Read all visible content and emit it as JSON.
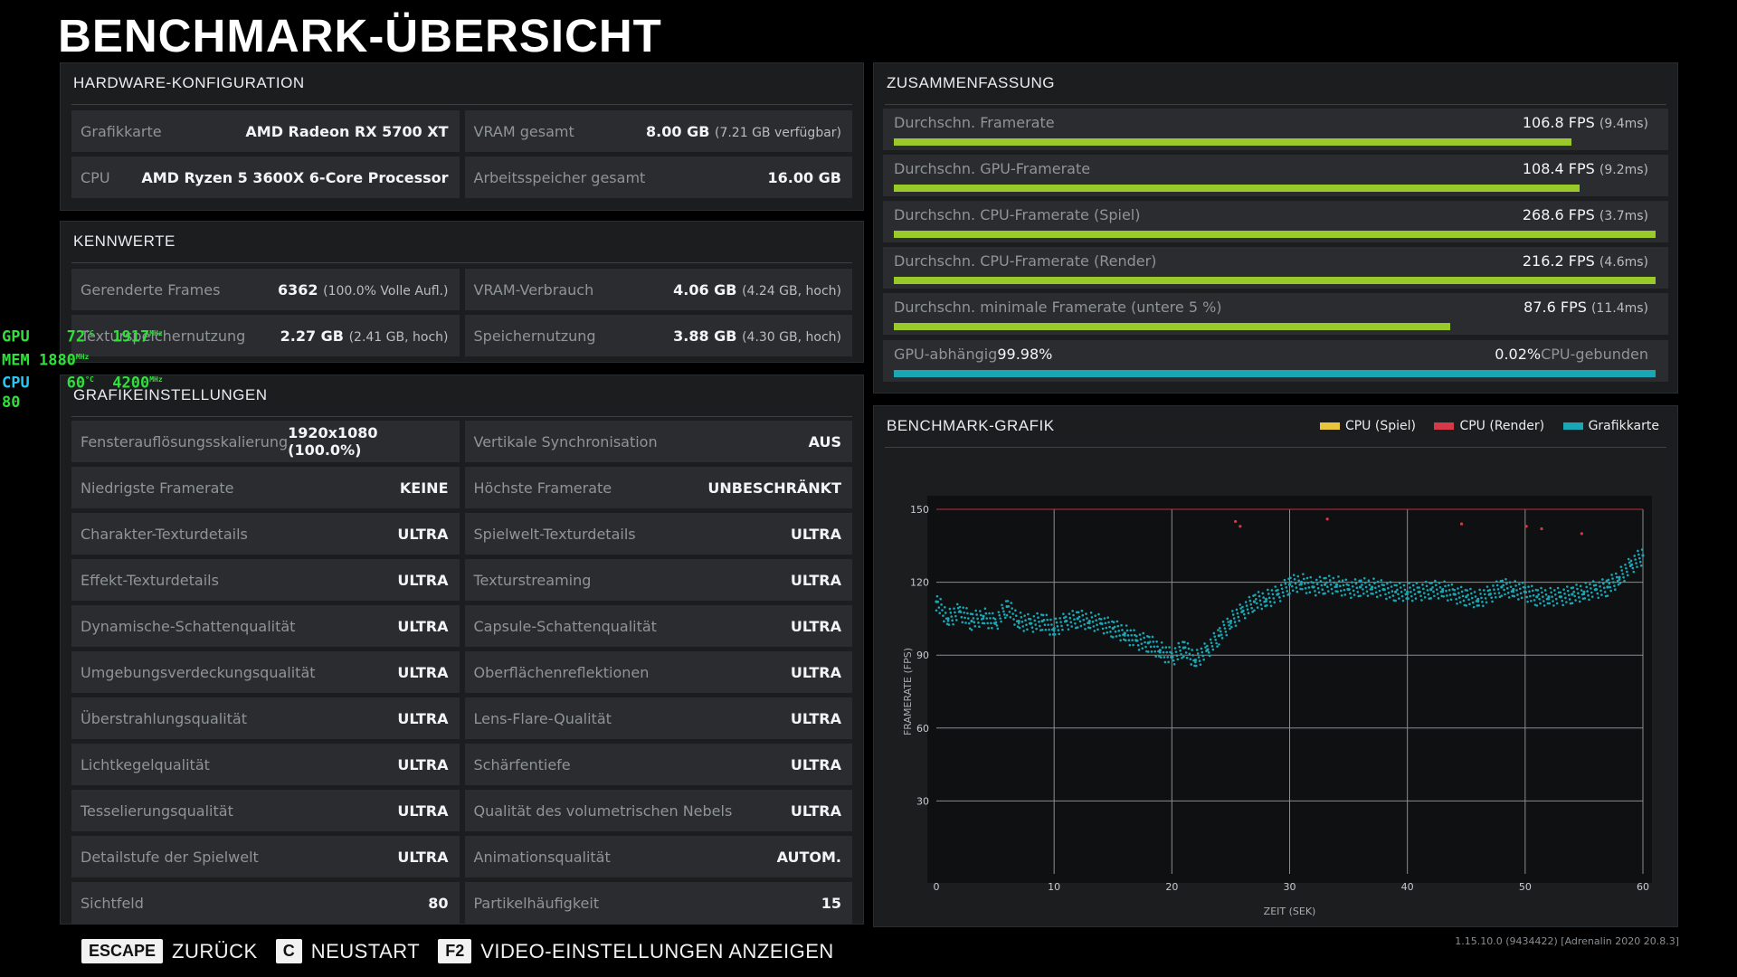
{
  "title": "BENCHMARK-ÜBERSICHT",
  "hardware": {
    "heading": "HARDWARE-KONFIGURATION",
    "rows": [
      {
        "k": "Grafikkarte",
        "v": "AMD Radeon RX 5700 XT",
        "s": ""
      },
      {
        "k": "VRAM gesamt",
        "v": "8.00 GB",
        "s": "(7.21 GB verfügbar)"
      },
      {
        "k": "CPU",
        "v": "AMD Ryzen 5 3600X 6-Core Processor",
        "s": ""
      },
      {
        "k": "Arbeitsspeicher gesamt",
        "v": "16.00 GB",
        "s": ""
      }
    ]
  },
  "kennwerte": {
    "heading": "KENNWERTE",
    "rows": [
      {
        "k": "Gerenderte Frames",
        "v": "6362",
        "s": "(100.0% Volle Aufl.)"
      },
      {
        "k": "VRAM-Verbrauch",
        "v": "4.06 GB",
        "s": "(4.24 GB, hoch)"
      },
      {
        "k": "Texturspeichernutzung",
        "v": "2.27 GB",
        "s": "(2.41 GB, hoch)"
      },
      {
        "k": "Speichernutzung",
        "v": "3.88 GB",
        "s": "(4.30 GB, hoch)"
      }
    ]
  },
  "grafik": {
    "heading": "GRAFIKEINSTELLUNGEN",
    "rows": [
      {
        "k": "Fensterauflösungsskalierung",
        "v": "1920x1080 (100.0%)"
      },
      {
        "k": "Vertikale Synchronisation",
        "v": "AUS"
      },
      {
        "k": "Niedrigste Framerate",
        "v": "KEINE"
      },
      {
        "k": "Höchste Framerate",
        "v": "UNBESCHRÄNKT"
      },
      {
        "k": "Charakter-Texturdetails",
        "v": "ULTRA"
      },
      {
        "k": "Spielwelt-Texturdetails",
        "v": "ULTRA"
      },
      {
        "k": "Effekt-Texturdetails",
        "v": "ULTRA"
      },
      {
        "k": "Texturstreaming",
        "v": "ULTRA"
      },
      {
        "k": "Dynamische-Schattenqualität",
        "v": "ULTRA"
      },
      {
        "k": "Capsule-Schattenqualität",
        "v": "ULTRA"
      },
      {
        "k": "Umgebungsverdeckungsqualität",
        "v": "ULTRA"
      },
      {
        "k": "Oberflächenreflektionen",
        "v": "ULTRA"
      },
      {
        "k": "Überstrahlungsqualität",
        "v": "ULTRA"
      },
      {
        "k": "Lens-Flare-Qualität",
        "v": "ULTRA"
      },
      {
        "k": "Lichtkegelqualität",
        "v": "ULTRA"
      },
      {
        "k": "Schärfentiefe",
        "v": "ULTRA"
      },
      {
        "k": "Tesselierungsqualität",
        "v": "ULTRA"
      },
      {
        "k": "Qualität des volumetrischen Nebels",
        "v": "ULTRA"
      },
      {
        "k": "Detailstufe der Spielwelt",
        "v": "ULTRA"
      },
      {
        "k": "Animationsqualität",
        "v": "AUTOM."
      },
      {
        "k": "Sichtfeld",
        "v": "80"
      },
      {
        "k": "Partikelhäufigkeit",
        "v": "15"
      }
    ]
  },
  "summary": {
    "heading": "ZUSAMMENFASSUNG",
    "rows": [
      {
        "k": "Durchschn. Framerate",
        "v": "106.8 FPS",
        "s": "(9.4ms)",
        "fill": 0.89
      },
      {
        "k": "Durchschn. GPU-Framerate",
        "v": "108.4 FPS",
        "s": "(9.2ms)",
        "fill": 0.9
      },
      {
        "k": "Durchschn. CPU-Framerate (Spiel)",
        "v": "268.6 FPS",
        "s": "(3.7ms)",
        "fill": 1.0
      },
      {
        "k": "Durchschn. CPU-Framerate (Render)",
        "v": "216.2 FPS",
        "s": "(4.6ms)",
        "fill": 1.0
      },
      {
        "k": "Durchschn. minimale Framerate (untere 5 %)",
        "v": "87.6 FPS",
        "s": "(11.4ms)",
        "fill": 0.73
      }
    ],
    "bound": {
      "gpu_label": "GPU-abhängig",
      "gpu_pct": "99.98%",
      "cpu_label": "CPU-gebunden",
      "cpu_pct": "0.02%",
      "gpu_fraction": 0.9998
    },
    "colors": {
      "bar": "#9ac92a",
      "gpu": "#19a6b5"
    }
  },
  "overlay": {
    "gpu": {
      "label": "GPU",
      "temp": "72",
      "temp_unit": "°C",
      "clock": "1917",
      "clock_unit": "MHz"
    },
    "mem": {
      "label": "MEM",
      "clock": "1880",
      "clock_unit": "MHz"
    },
    "cpu": {
      "label": "CPU",
      "temp": "60",
      "temp_unit": "°C",
      "clock": "4200",
      "clock_unit": "MHz"
    },
    "fps": "80"
  },
  "chart_data": {
    "type": "scatter",
    "title": "BENCHMARK-GRAFIK",
    "xlabel": "ZEIT (SEK)",
    "ylabel": "FRAMERATE (FPS)",
    "xlim": [
      0,
      60
    ],
    "ylim": [
      0,
      150
    ],
    "xticks": [
      0,
      10,
      20,
      30,
      40,
      50,
      60
    ],
    "yticks": [
      30,
      60,
      90,
      120,
      150
    ],
    "grid": true,
    "legend_position": "top-right",
    "series": [
      {
        "name": "CPU (Spiel)",
        "color": "#e8c53a",
        "x": [],
        "y": []
      },
      {
        "name": "CPU (Render)",
        "color": "#d63a48",
        "x": [
          25.4,
          25.8,
          33.2,
          44.6,
          50.1,
          51.4,
          54.8
        ],
        "y": [
          145,
          143,
          146,
          144,
          143,
          142,
          140
        ]
      },
      {
        "name": "Grafikkarte",
        "color": "#19a6b5",
        "x": [
          0,
          1,
          2,
          3,
          4,
          5,
          6,
          7,
          8,
          9,
          10,
          11,
          12,
          13,
          14,
          15,
          16,
          17,
          18,
          19,
          20,
          21,
          22,
          23,
          24,
          25,
          26,
          27,
          28,
          29,
          30,
          31,
          32,
          33,
          34,
          35,
          36,
          37,
          38,
          39,
          40,
          41,
          42,
          43,
          44,
          45,
          46,
          47,
          48,
          49,
          50,
          51,
          52,
          53,
          54,
          55,
          56,
          57,
          58,
          59,
          60
        ],
        "y": [
          112,
          105,
          108,
          104,
          106,
          103,
          110,
          104,
          103,
          104,
          101,
          104,
          105,
          104,
          103,
          101,
          99,
          96,
          95,
          92,
          89,
          93,
          88,
          92,
          98,
          104,
          108,
          112,
          113,
          115,
          119,
          120,
          118,
          119,
          119,
          117,
          118,
          118,
          117,
          116,
          116,
          116,
          117,
          117,
          115,
          114,
          113,
          115,
          118,
          117,
          116,
          114,
          114,
          114,
          115,
          116,
          117,
          118,
          122,
          127,
          131
        ]
      }
    ]
  },
  "footer": {
    "keys": [
      {
        "cap": "ESCAPE",
        "label": "ZURÜCK"
      },
      {
        "cap": "C",
        "label": "NEUSTART"
      },
      {
        "cap": "F2",
        "label": "VIDEO-EINSTELLUNGEN ANZEIGEN"
      }
    ],
    "version": "1.15.10.0 (9434422) [Adrenalin 2020 20.8.3]"
  }
}
